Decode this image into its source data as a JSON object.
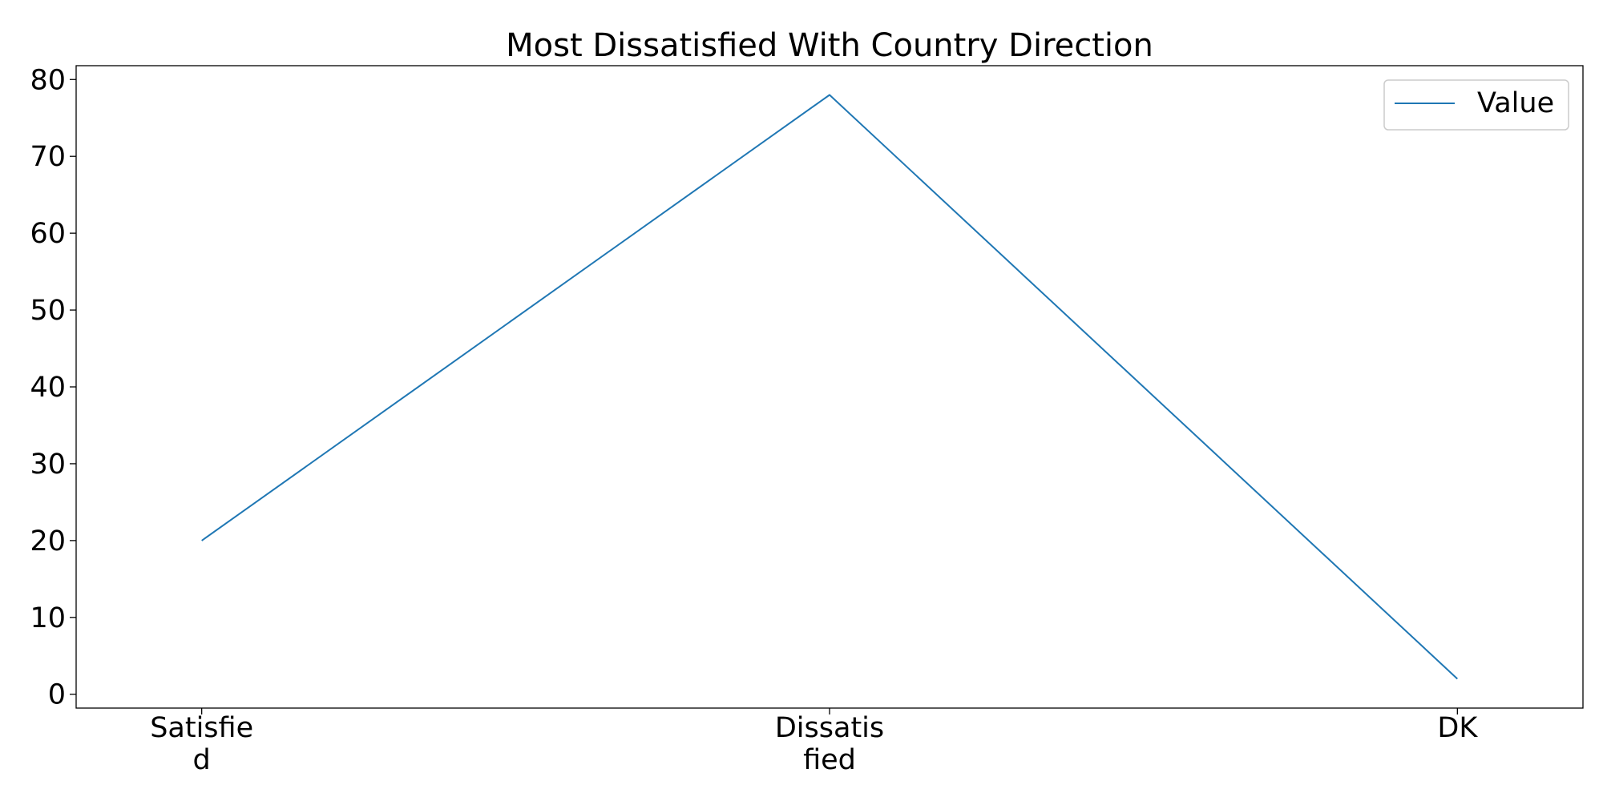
{
  "chart_data": {
    "type": "line",
    "title": "Most Dissatisfied With Country Direction",
    "xlabel": "",
    "ylabel": "",
    "categories": [
      [
        "Satisfie",
        "d"
      ],
      [
        "Dissatis",
        "fied"
      ],
      [
        "DK"
      ]
    ],
    "series": [
      {
        "name": "Value",
        "values": [
          20,
          78,
          2
        ]
      }
    ],
    "ylim": [
      -1.8,
      81.8
    ],
    "yticks": [
      0,
      10,
      20,
      30,
      40,
      50,
      60,
      70,
      80
    ],
    "grid": false,
    "legend": "top-right",
    "colors": {
      "series": "#1f77b4",
      "axes": "#000000",
      "legend_border": "#cccccc"
    }
  }
}
